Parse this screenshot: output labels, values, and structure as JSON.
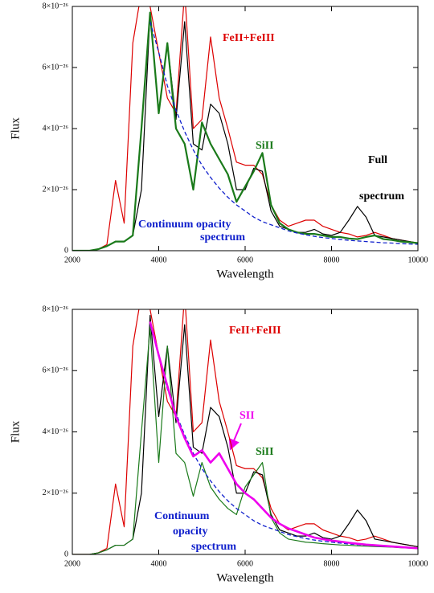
{
  "chart_data": [
    {
      "type": "line",
      "xlabel": "Wavelength",
      "ylabel": "Flux",
      "xlim": [
        2000,
        10000
      ],
      "ylim": [
        0,
        8e-26
      ],
      "xticks": [
        2000,
        4000,
        6000,
        8000,
        10000
      ],
      "yticks": [
        0,
        {
          "value": 2e-26,
          "label": "2×10⁻²⁶"
        },
        {
          "value": 4e-26,
          "label": "4×10⁻²⁶"
        },
        {
          "value": 6e-26,
          "label": "6×10⁻²⁶"
        },
        {
          "value": 8e-26,
          "label": "8×10⁻²⁶"
        }
      ],
      "x": [
        2000,
        2200,
        2400,
        2600,
        2800,
        3000,
        3200,
        3400,
        3600,
        3800,
        4000,
        4200,
        4400,
        4600,
        4800,
        5000,
        5200,
        5400,
        5600,
        5800,
        6000,
        6200,
        6400,
        6600,
        6800,
        7000,
        7200,
        7400,
        7600,
        7800,
        8000,
        8200,
        8400,
        8600,
        8800,
        9000,
        9200,
        9400,
        9600,
        9800,
        10000
      ],
      "series": [
        {
          "color": "#dd0000",
          "width": 1.2,
          "values": [
            0,
            0,
            0,
            5e-28,
            2e-27,
            2.3e-26,
            9e-27,
            6.8e-26,
            8.5e-26,
            8e-26,
            6.5e-26,
            5e-26,
            4.5e-26,
            8.5e-26,
            4e-26,
            4.3e-26,
            7e-26,
            5e-26,
            4e-26,
            2.9e-26,
            2.8e-26,
            2.8e-26,
            2.5e-26,
            1.5e-26,
            1e-26,
            8e-27,
            9e-27,
            1e-26,
            1e-26,
            8e-27,
            7e-27,
            6e-27,
            5.5e-27,
            4.5e-27,
            5e-27,
            6e-27,
            5e-27,
            4e-27,
            3.5e-27,
            3e-27,
            2.5e-27
          ]
        },
        {
          "color": "#000000",
          "width": 1.2,
          "values": [
            0,
            0,
            0,
            5e-28,
            1.5e-27,
            3e-27,
            3e-27,
            5e-27,
            2e-26,
            7.8e-26,
            4.5e-26,
            6.8e-26,
            4.3e-26,
            7.5e-26,
            3.5e-26,
            3.3e-26,
            4.8e-26,
            4.5e-26,
            3.5e-26,
            2e-26,
            2e-26,
            2.7e-26,
            2.6e-26,
            1.3e-26,
            8e-27,
            7e-27,
            6e-27,
            6e-27,
            7e-27,
            5.5e-27,
            5e-27,
            6e-27,
            1e-26,
            1.45e-26,
            1.1e-26,
            5e-27,
            4.5e-27,
            4e-27,
            3.5e-27,
            3e-27,
            2.5e-27
          ]
        },
        {
          "color": "#1a7a1a",
          "width": 2.2,
          "values": [
            0,
            0,
            0,
            5e-28,
            1.5e-27,
            3e-27,
            3e-27,
            5e-27,
            4e-26,
            7.8e-26,
            4.5e-26,
            6.8e-26,
            4e-26,
            3.5e-26,
            2e-26,
            4.2e-26,
            3.5e-26,
            3e-26,
            2.5e-26,
            1.6e-26,
            2.1e-26,
            2.6e-26,
            3.2e-26,
            1.5e-26,
            9e-27,
            7e-27,
            6e-27,
            5.5e-27,
            5.5e-27,
            5e-27,
            4.5e-27,
            4.5e-27,
            4e-27,
            3.8e-27,
            4.5e-27,
            5e-27,
            3.8e-27,
            3.5e-27,
            3e-27,
            2.8e-27,
            2.5e-27
          ]
        },
        {
          "color": "#1020cc",
          "width": 1.3,
          "dashed": true,
          "values": [
            null,
            null,
            null,
            null,
            null,
            null,
            null,
            null,
            null,
            7.5e-26,
            6.5e-26,
            5.4e-26,
            4.6e-26,
            3.9e-26,
            3.3e-26,
            2.8e-26,
            2.4e-26,
            2.05e-26,
            1.75e-26,
            1.5e-26,
            1.3e-26,
            1.1e-26,
            9.5e-27,
            8.5e-27,
            7.5e-27,
            6.5e-27,
            5.8e-27,
            5.2e-27,
            4.7e-27,
            4.3e-27,
            4e-27,
            3.7e-27,
            3.4e-27,
            3.2e-27,
            3e-27,
            2.8e-27,
            2.6e-27,
            2.5e-27,
            2.3e-27,
            2.2e-27,
            2.1e-27
          ]
        }
      ],
      "annotations": [
        {
          "text": [
            "FeII+FeIII"
          ],
          "color": "#dd0000"
        },
        {
          "text": [
            "SiII"
          ],
          "color": "#1a7a1a"
        },
        {
          "text": [
            "Full",
            "spectrum"
          ],
          "color": "#000000"
        },
        {
          "text": [
            "Continuum opacity",
            "spectrum"
          ],
          "color": "#1020cc"
        }
      ]
    },
    {
      "type": "line",
      "xlabel": "Wavelength",
      "ylabel": "Flux",
      "xlim": [
        2000,
        10000
      ],
      "ylim": [
        0,
        8e-26
      ],
      "xticks": [
        2000,
        4000,
        6000,
        8000,
        10000
      ],
      "yticks": [
        0,
        {
          "value": 2e-26,
          "label": "2×10⁻²⁶"
        },
        {
          "value": 4e-26,
          "label": "4×10⁻²⁶"
        },
        {
          "value": 6e-26,
          "label": "6×10⁻²⁶"
        },
        {
          "value": 8e-26,
          "label": "8×10⁻²⁶"
        }
      ],
      "x": [
        2000,
        2200,
        2400,
        2600,
        2800,
        3000,
        3200,
        3400,
        3600,
        3800,
        4000,
        4200,
        4400,
        4600,
        4800,
        5000,
        5200,
        5400,
        5600,
        5800,
        6000,
        6200,
        6400,
        6600,
        6800,
        7000,
        7200,
        7400,
        7600,
        7800,
        8000,
        8200,
        8400,
        8600,
        8800,
        9000,
        9200,
        9400,
        9600,
        9800,
        10000
      ],
      "series": [
        {
          "color": "#dd0000",
          "width": 1.2,
          "values": [
            0,
            0,
            0,
            5e-28,
            2e-27,
            2.3e-26,
            9e-27,
            6.8e-26,
            8.5e-26,
            8e-26,
            6.5e-26,
            5e-26,
            4.5e-26,
            8.5e-26,
            4e-26,
            4.3e-26,
            7e-26,
            5e-26,
            4e-26,
            2.9e-26,
            2.8e-26,
            2.8e-26,
            2.5e-26,
            1.5e-26,
            1e-26,
            8e-27,
            9e-27,
            1e-26,
            1e-26,
            8e-27,
            7e-27,
            6e-27,
            5.5e-27,
            4.5e-27,
            5e-27,
            6e-27,
            5e-27,
            4e-27,
            3.5e-27,
            3e-27,
            2.5e-27
          ]
        },
        {
          "color": "#000000",
          "width": 1.2,
          "values": [
            0,
            0,
            0,
            5e-28,
            1.5e-27,
            3e-27,
            3e-27,
            5e-27,
            2e-26,
            7.8e-26,
            4.5e-26,
            6.8e-26,
            4.3e-26,
            7.5e-26,
            3.5e-26,
            3.3e-26,
            4.8e-26,
            4.5e-26,
            3.5e-26,
            2e-26,
            2e-26,
            2.7e-26,
            2.6e-26,
            1.3e-26,
            8e-27,
            7e-27,
            6e-27,
            6e-27,
            7e-27,
            5.5e-27,
            5e-27,
            6e-27,
            1e-26,
            1.45e-26,
            1.1e-26,
            5e-27,
            4.5e-27,
            4e-27,
            3.5e-27,
            3e-27,
            2.5e-27
          ]
        },
        {
          "color": "#1a7a1a",
          "width": 1.2,
          "values": [
            0,
            0,
            0,
            5e-28,
            1.5e-27,
            3e-27,
            3e-27,
            5e-27,
            4e-26,
            7.4e-26,
            3e-26,
            6.8e-26,
            3.3e-26,
            3e-26,
            1.9e-26,
            3e-26,
            2.2e-26,
            1.8e-26,
            1.5e-26,
            1.3e-26,
            2.2e-26,
            2.6e-26,
            3e-26,
            1.2e-26,
            7e-27,
            5e-27,
            4.5e-27,
            4e-27,
            3.8e-27,
            3.5e-27,
            3.3e-27,
            3.1e-27,
            3e-27,
            2.8e-27,
            2.7e-27,
            2.6e-27,
            2.5e-27,
            2.4e-27,
            2.2e-27,
            2.1e-27,
            2e-27
          ]
        },
        {
          "color": "#1020cc",
          "width": 1.3,
          "dashed": true,
          "values": [
            null,
            null,
            null,
            null,
            null,
            null,
            null,
            null,
            null,
            7.5e-26,
            6.5e-26,
            5.4e-26,
            4.6e-26,
            3.9e-26,
            3.3e-26,
            2.8e-26,
            2.4e-26,
            2.05e-26,
            1.75e-26,
            1.5e-26,
            1.3e-26,
            1.1e-26,
            9.5e-27,
            8.5e-27,
            7.5e-27,
            6.5e-27,
            5.8e-27,
            5.2e-27,
            4.7e-27,
            4.3e-27,
            4e-27,
            3.7e-27,
            3.4e-27,
            3.2e-27,
            3e-27,
            2.8e-27,
            2.6e-27,
            2.5e-27,
            2.3e-27,
            2.2e-27,
            2.1e-27
          ]
        },
        {
          "color": "#ee00ee",
          "width": 2.6,
          "values": [
            null,
            null,
            null,
            null,
            null,
            null,
            null,
            null,
            null,
            7.6e-26,
            6.5e-26,
            5.5e-26,
            4.5e-26,
            3.8e-26,
            3.2e-26,
            3.4e-26,
            3e-26,
            3.3e-26,
            2.8e-26,
            2.3e-26,
            2e-26,
            1.8e-26,
            1.5e-26,
            1.2e-26,
            1e-26,
            8.5e-27,
            7.5e-27,
            6.5e-27,
            5.5e-27,
            5e-27,
            4.5e-27,
            4.2e-27,
            3.8e-27,
            3.5e-27,
            3.2e-27,
            3e-27,
            2.8e-27,
            2.6e-27,
            2.4e-27,
            2.2e-27,
            2e-27
          ]
        }
      ],
      "annotations": [
        {
          "text": [
            "FeII+FeIII"
          ],
          "color": "#dd0000"
        },
        {
          "text": [
            "SII"
          ],
          "color": "#ee00ee"
        },
        {
          "text": [
            "SiII"
          ],
          "color": "#1a7a1a"
        },
        {
          "text": [
            "Continuum",
            "opacity",
            "spectrum"
          ],
          "color": "#1020cc"
        }
      ]
    }
  ]
}
